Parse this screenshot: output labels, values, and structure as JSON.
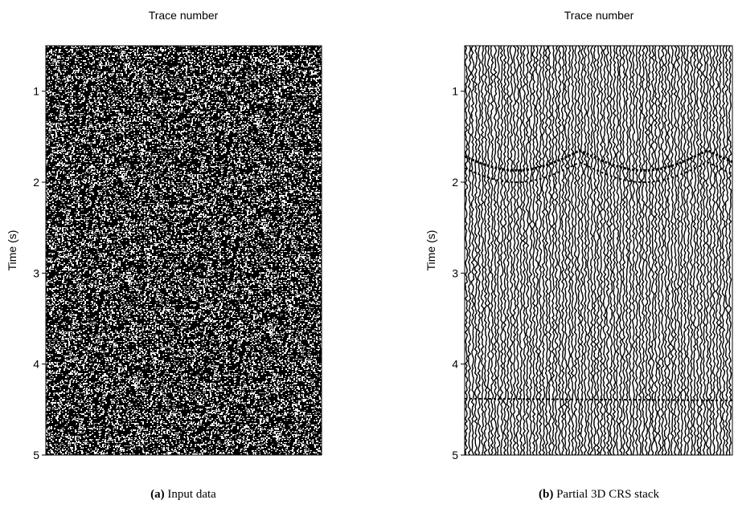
{
  "chart_data": [
    {
      "type": "seismic",
      "x_label": "Trace number",
      "y_label": "Time (s)",
      "ylim": [
        0.5,
        5
      ],
      "yticks": [
        1,
        2,
        3,
        4,
        5
      ],
      "background": "#000000",
      "caption_label": "(a)",
      "caption": "Input data"
    },
    {
      "type": "seismic",
      "x_label": "Trace number",
      "y_label": "Time (s)",
      "ylim": [
        0.5,
        5
      ],
      "yticks": [
        1,
        2,
        3,
        4,
        5
      ],
      "background": "#ffffff",
      "caption_label": "(b)",
      "caption": "Partial 3D CRS stack"
    }
  ]
}
